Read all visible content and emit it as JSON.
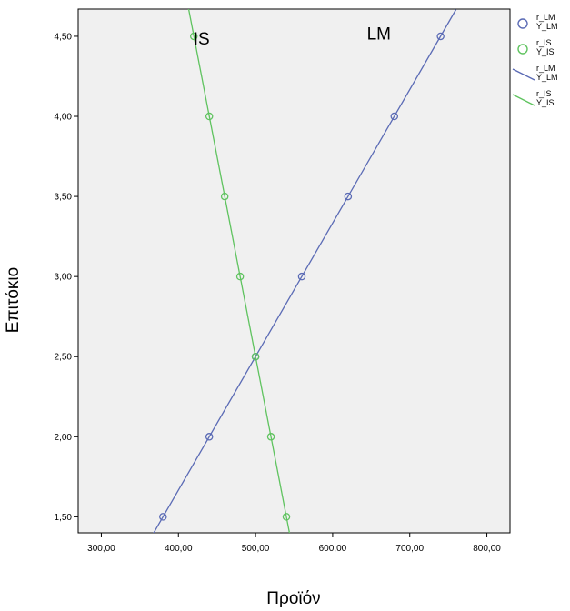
{
  "chart_data": {
    "type": "scatter",
    "xlabel": "Προϊόν",
    "ylabel": "Επιτόκιο",
    "xlim": [
      270,
      830
    ],
    "ylim": [
      1.4,
      4.67
    ],
    "x_ticks": [
      300,
      400,
      500,
      600,
      700,
      800
    ],
    "x_tick_labels": [
      "300,00",
      "400,00",
      "500,00",
      "600,00",
      "700,00",
      "800,00"
    ],
    "y_ticks": [
      1.5,
      2.0,
      2.5,
      3.0,
      3.5,
      4.0,
      4.5
    ],
    "y_tick_labels": [
      "1,50",
      "2,00",
      "2,50",
      "3,00",
      "3,50",
      "4,00",
      "4,50"
    ],
    "grid": false,
    "legend_position": "right",
    "annotations": [
      {
        "text": "IS",
        "x": 430,
        "y": 4.45
      },
      {
        "text": "LM",
        "x": 660,
        "y": 4.48
      }
    ],
    "series": [
      {
        "name": "r_LM",
        "legend_label": [
          "r_LM",
          "Y_LM"
        ],
        "kind": "markers",
        "color": "#5b6bb5",
        "x": [
          380,
          440,
          500,
          560,
          620,
          680,
          740
        ],
        "y": [
          1.5,
          2.0,
          2.5,
          3.0,
          3.5,
          4.0,
          4.5
        ]
      },
      {
        "name": "r_IS",
        "legend_label": [
          "r_IS",
          "Y_IS"
        ],
        "kind": "markers",
        "color": "#5fc35f",
        "x": [
          540,
          520,
          500,
          480,
          460,
          440,
          420
        ],
        "y": [
          1.5,
          2.0,
          2.5,
          3.0,
          3.5,
          4.0,
          4.5
        ]
      },
      {
        "name": "r_LM fit",
        "legend_label": [
          "r_LM",
          "Y_LM"
        ],
        "kind": "line",
        "color": "#5b6bb5",
        "x": [
          360,
          760
        ],
        "y": [
          1.333,
          4.667
        ]
      },
      {
        "name": "r_IS fit",
        "legend_label": [
          "r_IS",
          "Y_IS"
        ],
        "kind": "line",
        "color": "#5fc35f",
        "x": [
          406.7,
          546
        ],
        "y": [
          4.833,
          1.35
        ]
      }
    ]
  }
}
